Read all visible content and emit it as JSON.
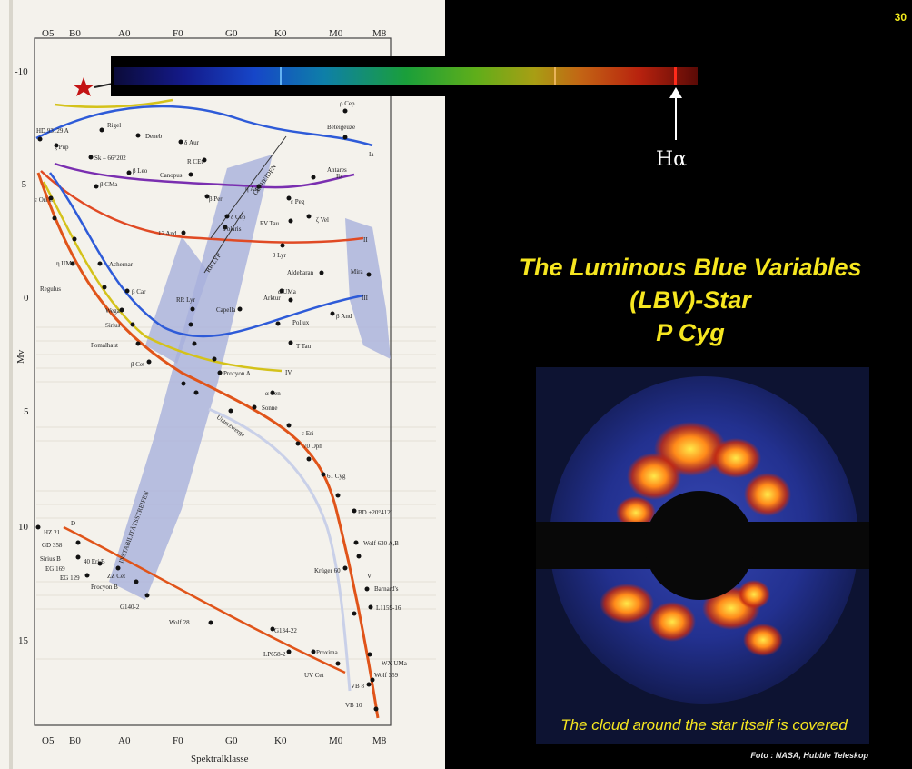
{
  "slide": {
    "page_number": "30",
    "title_lines": [
      "The Luminous Blue Variables",
      "(LBV)-Star",
      "P Cyg"
    ],
    "halpha_label": "Hα",
    "caption": "The cloud around the star itself is covered",
    "credit": "Foto : NASA, Hubble Teleskop"
  },
  "hr_diagram": {
    "spectral_classes": [
      "O5",
      "B0",
      "A0",
      "F0",
      "G0",
      "K0",
      "M0",
      "M8"
    ],
    "magnitude_ticks": [
      "-10",
      "-5",
      "0",
      "5",
      "10",
      "15"
    ],
    "x_label": "Spektralklasse",
    "y_label": "Mv",
    "region_labels": [
      "CEPHEIDEN",
      "RR LYR",
      "INSTABILITÄTSSTREIFEN",
      "Unterzwerge"
    ],
    "branch_labels": [
      "Ia",
      "Ib",
      "II",
      "III",
      "IV",
      "V",
      "D"
    ],
    "stars": [
      "HD 93129 A",
      "Rigel",
      "Deneb",
      "δ Aur",
      "Beteigeuze",
      "ζ Pup",
      "Sk – 66°202",
      "R CEt",
      "ρ Cep",
      "ε Ori C",
      "β CMa",
      "β Leo",
      "Canopus",
      "η Aql",
      "ζ Vel",
      "Antares",
      "ε Peg",
      "β Per",
      "δ Cep",
      "Polaris",
      "RV Tau",
      "12 And",
      "θ Lyr",
      "η UMa",
      "Mira",
      "Regulus",
      "Achernar",
      "Aldebaran",
      "Arktur",
      "β Car",
      "RR Lyr",
      "Capella",
      "α UMa",
      "Pollux",
      "β And",
      "T Tau",
      "Wega",
      "Sirius",
      "Fomalhaut",
      "β Cet",
      "Procyon A",
      "α Cen",
      "Sonne",
      "ε Eri",
      "70 Oph",
      "61 Cyg",
      "Barnard's",
      "Proxima",
      "Wolf 359",
      "UV Cet",
      "VB 8",
      "VB 10",
      "Krüger 60",
      "BD +20°4121",
      "Wolf 630 A,B",
      "Sirius B",
      "40 Eri B",
      "EG 129",
      "Procyon B",
      "G140-2",
      "Wolf 28",
      "G134-22",
      "LP658-2",
      "ZZ Cet",
      "HZ 21",
      "GD 358",
      "EG 169",
      "L1159-16",
      "WX UMa"
    ]
  }
}
